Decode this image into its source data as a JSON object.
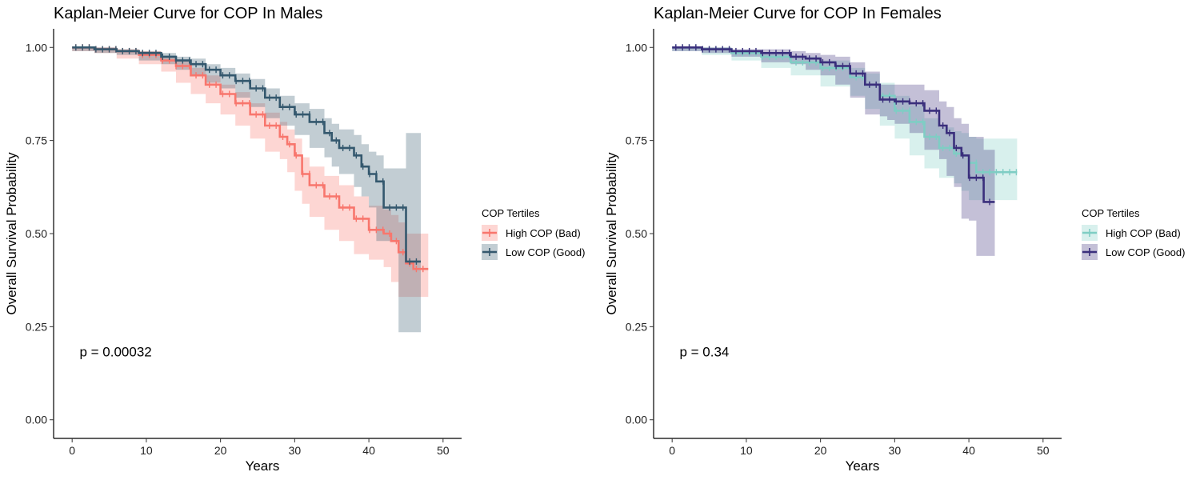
{
  "chart_data": [
    {
      "type": "line",
      "title": "Kaplan-Meier Curve for COP In Males",
      "xlabel": "Years",
      "ylabel": "Overall Survival Probability",
      "xlim": [
        -2.5,
        52.5
      ],
      "ylim": [
        -0.05,
        1.05
      ],
      "xticks": [
        0,
        10,
        20,
        30,
        40,
        50
      ],
      "yticks": [
        0,
        0.25,
        0.5,
        0.75,
        1.0
      ],
      "ytick_labels": [
        "0.00",
        "0.25",
        "0.50",
        "0.75",
        "1.00"
      ],
      "annotation": "p = 0.00032",
      "legend": {
        "title": "COP Tertiles",
        "placement": "right"
      },
      "series": [
        {
          "name": "High COP (Bad)",
          "color": "#F8766D",
          "x": [
            0,
            3,
            6,
            9,
            12,
            14,
            16,
            18,
            20,
            22,
            24,
            26,
            28,
            29,
            30,
            31,
            32,
            34,
            36,
            38,
            40,
            42,
            43,
            44,
            45,
            46,
            48
          ],
          "y": [
            1.0,
            0.995,
            0.99,
            0.98,
            0.965,
            0.95,
            0.925,
            0.9,
            0.875,
            0.85,
            0.82,
            0.79,
            0.76,
            0.74,
            0.71,
            0.66,
            0.63,
            0.6,
            0.57,
            0.54,
            0.51,
            0.5,
            0.48,
            0.45,
            0.42,
            0.405,
            0.405
          ],
          "lower": [
            1.0,
            0.99,
            0.985,
            0.97,
            0.955,
            0.935,
            0.905,
            0.875,
            0.85,
            0.82,
            0.79,
            0.755,
            0.72,
            0.7,
            0.665,
            0.615,
            0.58,
            0.545,
            0.51,
            0.48,
            0.445,
            0.43,
            0.41,
            0.37,
            0.33,
            0.33,
            0.33
          ],
          "upper": [
            1.0,
            1.0,
            0.995,
            0.99,
            0.975,
            0.965,
            0.945,
            0.925,
            0.9,
            0.88,
            0.85,
            0.825,
            0.8,
            0.78,
            0.755,
            0.705,
            0.68,
            0.655,
            0.63,
            0.6,
            0.575,
            0.565,
            0.55,
            0.53,
            0.5,
            0.5,
            0.5
          ]
        },
        {
          "name": "Low COP (Good)",
          "color": "#34586E",
          "x": [
            0,
            3,
            6,
            9,
            12,
            14,
            16,
            18,
            20,
            22,
            24,
            26,
            28,
            30,
            32,
            34,
            35,
            36,
            38,
            39,
            40,
            41,
            42,
            43,
            44,
            45,
            47
          ],
          "y": [
            1.0,
            0.995,
            0.99,
            0.985,
            0.975,
            0.965,
            0.955,
            0.94,
            0.925,
            0.91,
            0.89,
            0.865,
            0.84,
            0.82,
            0.8,
            0.77,
            0.75,
            0.73,
            0.71,
            0.68,
            0.66,
            0.64,
            0.57,
            0.57,
            0.57,
            0.425,
            0.425
          ],
          "lower": [
            1.0,
            0.99,
            0.985,
            0.98,
            0.965,
            0.955,
            0.94,
            0.925,
            0.905,
            0.89,
            0.865,
            0.84,
            0.81,
            0.79,
            0.765,
            0.73,
            0.705,
            0.68,
            0.66,
            0.625,
            0.6,
            0.57,
            0.48,
            0.48,
            0.48,
            0.235,
            0.235
          ],
          "upper": [
            1.0,
            1.0,
            0.995,
            0.99,
            0.985,
            0.975,
            0.97,
            0.955,
            0.945,
            0.93,
            0.915,
            0.89,
            0.87,
            0.85,
            0.835,
            0.81,
            0.795,
            0.78,
            0.765,
            0.74,
            0.72,
            0.71,
            0.675,
            0.675,
            0.675,
            0.77,
            0.77
          ]
        }
      ]
    },
    {
      "type": "line",
      "title": "Kaplan-Meier Curve for COP In Females",
      "xlabel": "Years",
      "ylabel": "Overall Survival Probability",
      "xlim": [
        -2.5,
        52.5
      ],
      "ylim": [
        -0.05,
        1.05
      ],
      "xticks": [
        0,
        10,
        20,
        30,
        40,
        50
      ],
      "yticks": [
        0,
        0.25,
        0.5,
        0.75,
        1.0
      ],
      "ytick_labels": [
        "0.00",
        "0.25",
        "0.50",
        "0.75",
        "1.00"
      ],
      "annotation": "p = 0.34",
      "legend": {
        "title": "COP Tertiles",
        "placement": "right"
      },
      "series": [
        {
          "name": "High COP (Bad)",
          "color": "#7FCDC4",
          "x": [
            0,
            4,
            8,
            12,
            16,
            20,
            24,
            26,
            28,
            30,
            32,
            34,
            36,
            38,
            39,
            40,
            41,
            42,
            44,
            46.5
          ],
          "y": [
            1.0,
            0.995,
            0.985,
            0.975,
            0.96,
            0.945,
            0.92,
            0.9,
            0.87,
            0.83,
            0.8,
            0.76,
            0.73,
            0.715,
            0.71,
            0.69,
            0.665,
            0.665,
            0.665,
            0.665
          ],
          "lower": [
            1.0,
            0.99,
            0.98,
            0.965,
            0.945,
            0.925,
            0.895,
            0.87,
            0.835,
            0.79,
            0.755,
            0.71,
            0.675,
            0.65,
            0.635,
            0.615,
            0.59,
            0.59,
            0.59,
            0.59
          ],
          "upper": [
            1.0,
            1.0,
            0.99,
            0.985,
            0.975,
            0.965,
            0.945,
            0.93,
            0.905,
            0.87,
            0.845,
            0.81,
            0.785,
            0.775,
            0.77,
            0.76,
            0.755,
            0.755,
            0.755,
            0.755
          ]
        },
        {
          "name": "Low COP (Good)",
          "color": "#3A2F7C",
          "x": [
            0,
            4,
            8,
            12,
            16,
            18,
            20,
            22,
            24,
            26,
            28,
            29,
            30,
            32,
            34,
            36,
            37,
            38,
            39,
            40,
            41,
            42,
            43.5
          ],
          "y": [
            1.0,
            0.995,
            0.99,
            0.985,
            0.975,
            0.97,
            0.96,
            0.95,
            0.93,
            0.9,
            0.86,
            0.86,
            0.855,
            0.85,
            0.83,
            0.79,
            0.77,
            0.73,
            0.71,
            0.65,
            0.65,
            0.585,
            0.585
          ],
          "lower": [
            1.0,
            0.99,
            0.985,
            0.975,
            0.96,
            0.955,
            0.94,
            0.925,
            0.9,
            0.865,
            0.82,
            0.815,
            0.805,
            0.795,
            0.77,
            0.725,
            0.7,
            0.655,
            0.625,
            0.54,
            0.535,
            0.44,
            0.44
          ],
          "upper": [
            1.0,
            1.0,
            0.995,
            0.995,
            0.99,
            0.985,
            0.98,
            0.975,
            0.96,
            0.935,
            0.9,
            0.9,
            0.9,
            0.9,
            0.885,
            0.855,
            0.84,
            0.81,
            0.795,
            0.76,
            0.76,
            0.725,
            0.725
          ]
        }
      ]
    }
  ]
}
